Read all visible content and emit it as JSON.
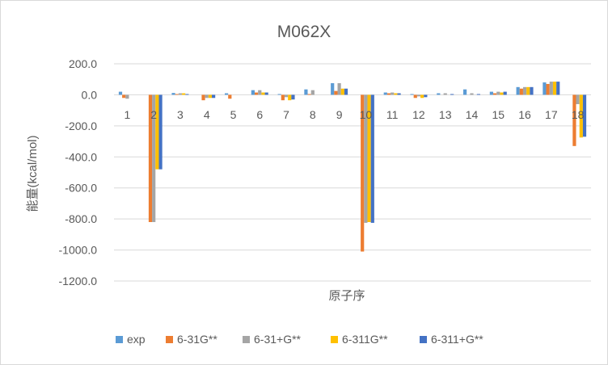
{
  "chart_data": {
    "type": "bar",
    "title": "M062X",
    "xlabel": "原子序",
    "ylabel": "能量(kcal/mol)",
    "ylim": [
      -1200,
      200
    ],
    "ytick_step": 200,
    "grid": true,
    "legend_position": "bottom",
    "categories": [
      "1",
      "2",
      "3",
      "4",
      "5",
      "6",
      "7",
      "8",
      "9",
      "10",
      "11",
      "12",
      "13",
      "14",
      "15",
      "16",
      "17",
      "18"
    ],
    "series": [
      {
        "name": "exp",
        "color": "#5B9BD5",
        "values": [
          20,
          0,
          12,
          0,
          10,
          30,
          5,
          35,
          75,
          0,
          15,
          5,
          10,
          35,
          20,
          50,
          80,
          0
        ]
      },
      {
        "name": "6-31G**",
        "color": "#ED7D31",
        "values": [
          -20,
          -820,
          5,
          -35,
          -25,
          15,
          -35,
          5,
          25,
          -1010,
          10,
          -20,
          0,
          0,
          10,
          40,
          70,
          -330
        ]
      },
      {
        "name": "6-31+G**",
        "color": "#A5A5A5",
        "values": [
          -25,
          -820,
          10,
          -20,
          0,
          30,
          -15,
          30,
          75,
          -825,
          15,
          -10,
          10,
          10,
          20,
          50,
          85,
          -60
        ]
      },
      {
        "name": "6-311G**",
        "color": "#FFC000",
        "values": [
          0,
          -480,
          10,
          -20,
          0,
          15,
          -35,
          0,
          40,
          -820,
          10,
          -20,
          0,
          0,
          15,
          50,
          85,
          -275
        ]
      },
      {
        "name": "6-311+G**",
        "color": "#4472C4",
        "values": [
          0,
          -480,
          5,
          -20,
          0,
          15,
          -30,
          0,
          40,
          -825,
          10,
          -15,
          5,
          5,
          20,
          50,
          85,
          -270
        ]
      }
    ]
  }
}
